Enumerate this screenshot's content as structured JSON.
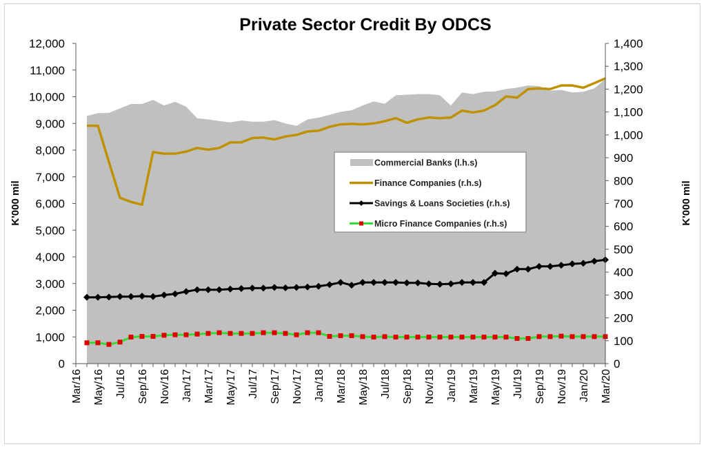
{
  "chart_data": {
    "type": "line",
    "title": "Private Sector Credit By ODCS",
    "ylabel_left": "K'000 mil",
    "ylabel_right": "K'000 mil",
    "ylim_left": [
      0,
      12000
    ],
    "ylim_right": [
      0,
      1400
    ],
    "yticks_left": [
      "0",
      "1,000",
      "2,000",
      "3,000",
      "4,000",
      "5,000",
      "6,000",
      "7,000",
      "8,000",
      "9,000",
      "10,000",
      "11,000",
      "12,000"
    ],
    "yticks_right": [
      "0",
      "100",
      "200",
      "300",
      "400",
      "500",
      "600",
      "700",
      "800",
      "900",
      "1,000",
      "1,100",
      "1,200",
      "1,300",
      "1,400"
    ],
    "xticks": [
      "Mar/16",
      "May/16",
      "Jul/16",
      "Sep/16",
      "Nov/16",
      "Jan/17",
      "Mar/17",
      "May/17",
      "Jul/17",
      "Sep/17",
      "Nov/17",
      "Jan/18",
      "Mar/18",
      "May/18",
      "Jul/18",
      "Sep/18",
      "Nov/18",
      "Jan/19",
      "Mar/19",
      "May/19",
      "Jul/19",
      "Sep/19",
      "Nov/19",
      "Jan/20",
      "Mar/20"
    ],
    "x_start": "Apr/16",
    "x_end": "Mar/20",
    "grid": false,
    "legend_placement": "center-right",
    "series": [
      {
        "name": "Commercial Banks (l.h.s)",
        "axis": "left",
        "kind": "area",
        "color": "#c0c0c0",
        "values": [
          9280,
          9385,
          9395,
          9565,
          9730,
          9730,
          9885,
          9670,
          9815,
          9625,
          9195,
          9150,
          9090,
          9040,
          9110,
          9065,
          9065,
          9125,
          9000,
          8910,
          9150,
          9220,
          9325,
          9435,
          9495,
          9670,
          9825,
          9740,
          10055,
          10075,
          10100,
          10100,
          10055,
          9670,
          10160,
          10100,
          10185,
          10200,
          10290,
          10340,
          10425,
          10400,
          10230,
          10255,
          10160,
          10185,
          10315,
          10660
        ]
      },
      {
        "name": "Finance Companies (r.h.s)",
        "axis": "right",
        "kind": "line",
        "color": "#bf9000",
        "values": [
          1040,
          1040,
          882,
          725,
          707,
          695,
          925,
          918,
          918,
          927,
          943,
          935,
          943,
          967,
          967,
          986,
          988,
          980,
          993,
          1000,
          1015,
          1018,
          1035,
          1046,
          1048,
          1046,
          1050,
          1060,
          1073,
          1053,
          1068,
          1076,
          1073,
          1076,
          1106,
          1098,
          1106,
          1130,
          1168,
          1163,
          1200,
          1203,
          1200,
          1216,
          1216,
          1206,
          1226,
          1247
        ]
      },
      {
        "name": "Savings & Loans Societies (r.h.s)",
        "axis": "right",
        "kind": "line-diamond",
        "color": "#000000",
        "values": [
          290,
          290,
          291,
          293,
          293,
          295,
          293,
          300,
          305,
          315,
          323,
          323,
          323,
          326,
          328,
          330,
          330,
          333,
          331,
          333,
          335,
          338,
          345,
          355,
          343,
          355,
          355,
          355,
          355,
          353,
          353,
          349,
          347,
          349,
          355,
          355,
          355,
          395,
          393,
          413,
          413,
          425,
          425,
          430,
          436,
          439,
          448,
          454
        ]
      },
      {
        "name": "Micro Finance Companies (r.h.s)",
        "axis": "right",
        "kind": "line-square",
        "color": "#33dd33",
        "marker_color": "#e00000",
        "values": [
          91,
          91,
          84,
          94,
          116,
          119,
          119,
          124,
          126,
          126,
          129,
          132,
          135,
          132,
          132,
          132,
          135,
          135,
          132,
          126,
          135,
          135,
          119,
          122,
          122,
          118,
          116,
          118,
          116,
          116,
          116,
          116,
          116,
          116,
          116,
          116,
          116,
          116,
          116,
          110,
          110,
          118,
          118,
          120,
          118,
          118,
          118,
          118
        ]
      }
    ]
  }
}
